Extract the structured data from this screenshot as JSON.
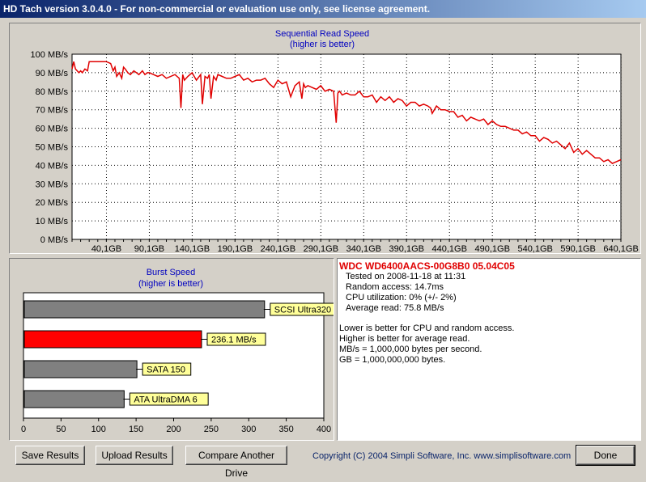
{
  "window": {
    "title": "HD Tach version 3.0.4.0  - For non-commercial or evaluation use only, see license agreement."
  },
  "sequential_chart": {
    "title": "Sequential Read Speed",
    "subtitle": "(higher is better)",
    "y_ticks": [
      "100 MB/s",
      "90 MB/s",
      "80 MB/s",
      "70 MB/s",
      "60 MB/s",
      "50 MB/s",
      "40 MB/s",
      "30 MB/s",
      "20 MB/s",
      "10 MB/s",
      "0 MB/s"
    ],
    "x_ticks": [
      "40,1GB",
      "90,1GB",
      "140,1GB",
      "190,1GB",
      "240,1GB",
      "290,1GB",
      "340,1GB",
      "390,1GB",
      "440,1GB",
      "490,1GB",
      "540,1GB",
      "590,1GB",
      "640,1GB"
    ],
    "color": "#e00000"
  },
  "burst_chart": {
    "title": "Burst Speed",
    "subtitle": "(higher is better)",
    "x_ticks": [
      "0",
      "50",
      "100",
      "150",
      "200",
      "250",
      "300",
      "350",
      "400"
    ]
  },
  "chart_data": [
    {
      "type": "line",
      "title": "Sequential Read Speed",
      "subtitle": "(higher is better)",
      "xlabel": "",
      "ylabel": "",
      "xlim": [
        0,
        640
      ],
      "ylim": [
        0,
        100
      ],
      "x_unit": "GB",
      "y_unit": "MB/s",
      "grid": true,
      "x": [
        0,
        2,
        4,
        6,
        8,
        10,
        12,
        15,
        18,
        20,
        25,
        30,
        35,
        40,
        45,
        48,
        50,
        52,
        55,
        58,
        60,
        62,
        65,
        68,
        70,
        72,
        75,
        78,
        80,
        82,
        85,
        88,
        90,
        95,
        100,
        105,
        110,
        120,
        125,
        127,
        129,
        131,
        135,
        140,
        145,
        150,
        152,
        155,
        158,
        160,
        162,
        165,
        168,
        170,
        175,
        180,
        185,
        190,
        195,
        200,
        205,
        210,
        215,
        220,
        225,
        230,
        235,
        240,
        245,
        250,
        255,
        260,
        265,
        268,
        270,
        272,
        275,
        280,
        285,
        290,
        295,
        300,
        305,
        308,
        310,
        312,
        315,
        320,
        325,
        330,
        335,
        340,
        345,
        350,
        355,
        360,
        365,
        370,
        375,
        380,
        385,
        390,
        395,
        400,
        405,
        410,
        415,
        418,
        420,
        425,
        430,
        435,
        440,
        445,
        450,
        455,
        460,
        465,
        470,
        475,
        480,
        485,
        490,
        495,
        500,
        505,
        510,
        515,
        520,
        525,
        530,
        535,
        540,
        545,
        550,
        555,
        560,
        565,
        570,
        575,
        580,
        585,
        590,
        595,
        600,
        605,
        610,
        615,
        620,
        625,
        630,
        635,
        640
      ],
      "series": [
        {
          "color": "#e00000",
          "values": [
            92,
            96,
            92,
            91,
            90,
            91,
            90,
            92,
            91,
            96,
            96,
            96,
            96,
            96,
            95,
            91,
            93,
            88,
            90,
            87,
            93,
            92,
            90,
            89,
            90,
            91,
            90,
            89,
            90,
            91,
            89,
            90,
            90,
            89,
            88,
            89,
            87,
            89,
            87,
            71,
            89,
            86,
            88,
            90,
            86,
            89,
            73,
            88,
            87,
            89,
            76,
            88,
            86,
            89,
            88,
            87,
            87,
            88,
            89,
            86,
            87,
            85,
            86,
            86,
            87,
            84,
            82,
            86,
            84,
            85,
            77,
            83,
            85,
            76,
            84,
            82,
            83,
            82,
            81,
            83,
            80,
            81,
            80,
            63,
            79,
            80,
            78,
            79,
            78,
            78,
            80,
            77,
            77,
            78,
            74,
            77,
            75,
            77,
            74,
            76,
            75,
            72,
            74,
            74,
            72,
            73,
            72,
            71,
            68,
            72,
            70,
            70,
            69,
            69,
            66,
            67,
            64,
            66,
            65,
            64,
            65,
            62,
            64,
            62,
            61,
            61,
            60,
            59,
            59,
            57,
            58,
            56,
            56,
            53,
            55,
            54,
            52,
            53,
            51,
            49,
            52,
            47,
            49,
            46,
            48,
            46,
            44,
            44,
            42,
            43,
            41,
            42,
            43
          ]
        }
      ]
    },
    {
      "type": "bar",
      "title": "Burst Speed",
      "subtitle": "(higher is better)",
      "xlabel": "",
      "ylabel": "",
      "xlim": [
        0,
        400
      ],
      "grid": false,
      "categories": [
        "SCSI Ultra320",
        "236.1 MB/s",
        "SATA 150",
        "ATA UltraDMA 6"
      ],
      "values": [
        320,
        236.1,
        150,
        133
      ],
      "colors": [
        "#808080",
        "#ff0000",
        "#808080",
        "#808080"
      ]
    }
  ],
  "info": {
    "drive": "WDC WD6400AACS-00G8B0 05.04C05",
    "tested": "Tested on 2008-11-18 at 11:31",
    "random_access": "Random access: 14.7ms",
    "cpu": "CPU utilization: 0% (+/- 2%)",
    "avg_read": "Average read: 75.8 MB/s",
    "note1": "Lower is better for CPU and random access.",
    "note2": "Higher is better for average read.",
    "note3": "MB/s = 1,000,000 bytes per second.",
    "note4": "GB = 1,000,000,000 bytes."
  },
  "buttons": {
    "save": "Save Results",
    "upload": "Upload Results",
    "compare": "Compare Another Drive",
    "done": "Done"
  },
  "copyright": "Copyright (C) 2004 Simpli Software, Inc. www.simplisoftware.com"
}
